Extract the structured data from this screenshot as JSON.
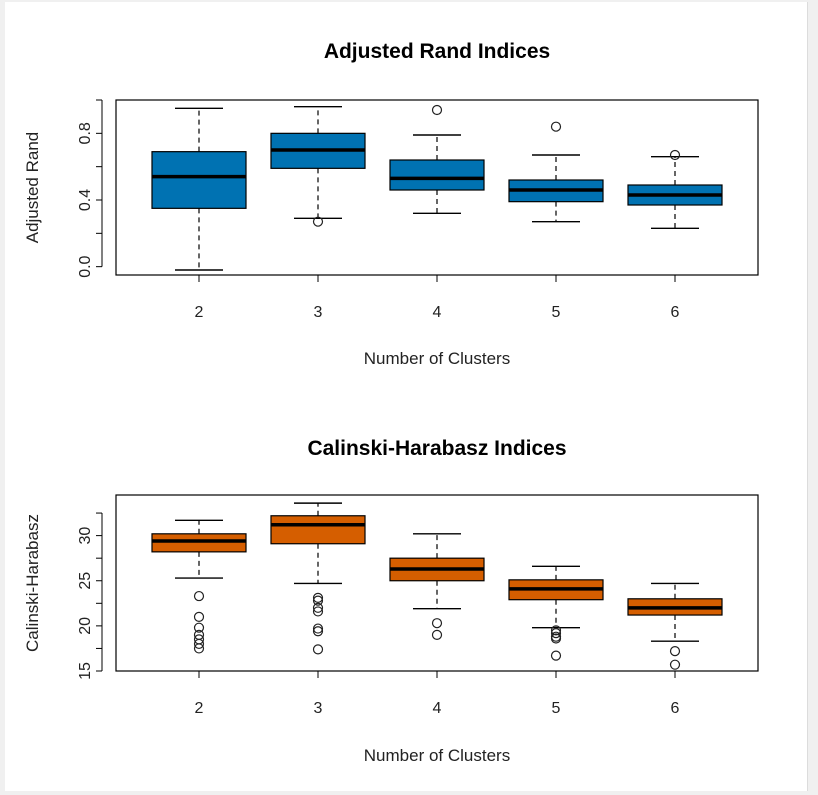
{
  "chart_data": [
    {
      "type": "box",
      "title": "Adjusted Rand Indices",
      "xlabel": "Number of Clusters",
      "ylabel": "Adjusted Rand",
      "categories": [
        "2",
        "3",
        "4",
        "5",
        "6"
      ],
      "ylim": [
        -0.05,
        1.0
      ],
      "yticks": [
        "0.0",
        "0.4",
        "0.8"
      ],
      "fill_color": "#0072b2",
      "grid": false,
      "boxes": [
        {
          "whisker_low": -0.02,
          "q1": 0.35,
          "median": 0.54,
          "q3": 0.69,
          "whisker_high": 0.95,
          "outliers": []
        },
        {
          "whisker_low": 0.29,
          "q1": 0.59,
          "median": 0.7,
          "q3": 0.8,
          "whisker_high": 0.96,
          "outliers": [
            0.27
          ]
        },
        {
          "whisker_low": 0.32,
          "q1": 0.46,
          "median": 0.53,
          "q3": 0.64,
          "whisker_high": 0.79,
          "outliers": [
            0.94
          ]
        },
        {
          "whisker_low": 0.27,
          "q1": 0.39,
          "median": 0.46,
          "q3": 0.52,
          "whisker_high": 0.67,
          "outliers": [
            0.84
          ]
        },
        {
          "whisker_low": 0.23,
          "q1": 0.37,
          "median": 0.43,
          "q3": 0.49,
          "whisker_high": 0.66,
          "outliers": [
            0.67
          ]
        }
      ]
    },
    {
      "type": "box",
      "title": "Calinski-Harabasz Indices",
      "xlabel": "Number of Clusters",
      "ylabel": "Calinski-Harabasz",
      "categories": [
        "2",
        "3",
        "4",
        "5",
        "6"
      ],
      "ylim": [
        15,
        34.5
      ],
      "yticks": [
        "15",
        "20",
        "25",
        "30"
      ],
      "fill_color": "#d55e00",
      "grid": false,
      "boxes": [
        {
          "whisker_low": 25.3,
          "q1": 28.2,
          "median": 29.4,
          "q3": 30.2,
          "whisker_high": 31.7,
          "outliers": [
            23.3,
            21.0,
            19.8,
            19.0,
            18.5,
            18.0,
            17.5
          ]
        },
        {
          "whisker_low": 24.7,
          "q1": 29.1,
          "median": 31.2,
          "q3": 32.2,
          "whisker_high": 33.6,
          "outliers": [
            23.1,
            22.8,
            22.0,
            21.6,
            19.7,
            19.4,
            17.4
          ]
        },
        {
          "whisker_low": 21.9,
          "q1": 25.0,
          "median": 26.3,
          "q3": 27.5,
          "whisker_high": 30.2,
          "outliers": [
            20.3,
            19.0
          ]
        },
        {
          "whisker_low": 19.8,
          "q1": 22.9,
          "median": 24.1,
          "q3": 25.1,
          "whisker_high": 26.6,
          "outliers": [
            19.5,
            19.2,
            18.8,
            18.6,
            16.7
          ]
        },
        {
          "whisker_low": 18.3,
          "q1": 21.2,
          "median": 22.0,
          "q3": 23.0,
          "whisker_high": 24.7,
          "outliers": [
            17.2,
            15.7
          ]
        }
      ]
    }
  ]
}
